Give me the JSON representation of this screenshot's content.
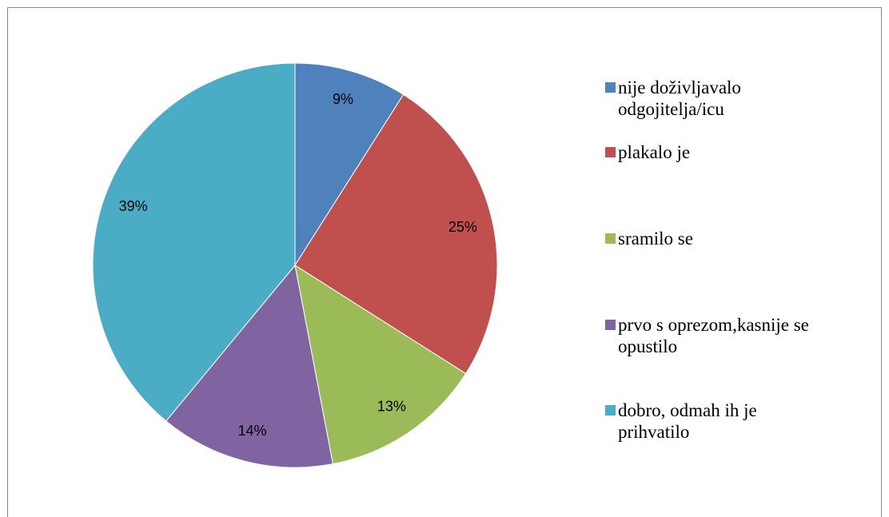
{
  "chart_data": {
    "type": "pie",
    "categories": [
      "nije doživljavalo odgojitelja/icu",
      "plakalo je",
      "sramilo se",
      "prvo s oprezom,kasnije se opustilo",
      "dobro, odmah ih je prihvatilo"
    ],
    "values": [
      9,
      25,
      13,
      14,
      39
    ],
    "value_labels": [
      "9%",
      "25%",
      "13%",
      "14%",
      "39%"
    ],
    "colors": [
      "#4f81bd",
      "#c0504d",
      "#9bbb59",
      "#8064a2",
      "#4bacc6"
    ],
    "legend": "right"
  }
}
